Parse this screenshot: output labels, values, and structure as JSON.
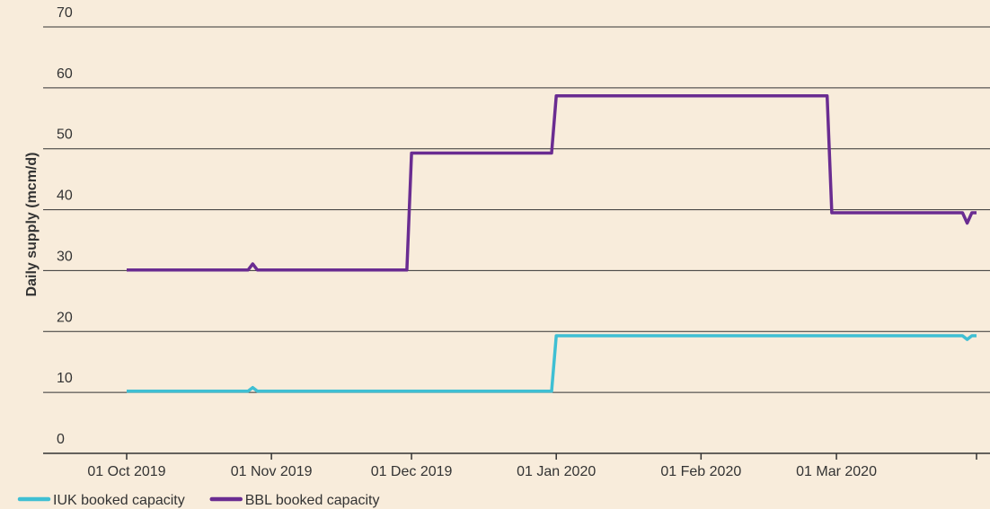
{
  "chart_data": {
    "type": "line",
    "y_label": "Daily supply (mcm/d)",
    "ylim": [
      0,
      70
    ],
    "yticks": [
      0,
      10,
      20,
      30,
      40,
      50,
      60,
      70
    ],
    "grid": true,
    "xlim": [
      "2019-10-01",
      "2020-03-31"
    ],
    "xticks": [
      {
        "value": "2019-10-01",
        "label": "01 Oct 2019"
      },
      {
        "value": "2019-11-01",
        "label": "01 Nov 2019"
      },
      {
        "value": "2019-12-01",
        "label": "01 Dec 2019"
      },
      {
        "value": "2020-01-01",
        "label": "01 Jan 2020"
      },
      {
        "value": "2020-02-01",
        "label": "01 Feb 2020"
      },
      {
        "value": "2020-03-01",
        "label": "01 Mar 2020"
      },
      {
        "value": "2020-03-31",
        "label": null
      }
    ],
    "legend": "bottom-left",
    "series": [
      {
        "name": "IUK booked capacity",
        "color": "#3fbfd3",
        "x": [
          "2019-10-01",
          "2019-10-27",
          "2019-10-28",
          "2019-10-29",
          "2019-12-31",
          "2020-01-01",
          "2020-03-28",
          "2020-03-29",
          "2020-03-30",
          "2020-03-31"
        ],
        "values": [
          10.2,
          10.2,
          10.8,
          10.2,
          10.2,
          19.3,
          19.3,
          18.7,
          19.3,
          19.3
        ]
      },
      {
        "name": "BBL booked capacity",
        "color": "#6a2c91",
        "x": [
          "2019-10-01",
          "2019-10-27",
          "2019-10-28",
          "2019-10-29",
          "2019-11-30",
          "2019-12-01",
          "2019-12-31",
          "2020-01-01",
          "2020-02-28",
          "2020-02-29",
          "2020-03-28",
          "2020-03-29",
          "2020-03-30",
          "2020-03-31"
        ],
        "values": [
          30.1,
          30.1,
          31.1,
          30.1,
          30.1,
          49.3,
          49.3,
          58.7,
          58.7,
          39.5,
          39.5,
          37.8,
          39.5,
          39.5
        ]
      }
    ]
  }
}
